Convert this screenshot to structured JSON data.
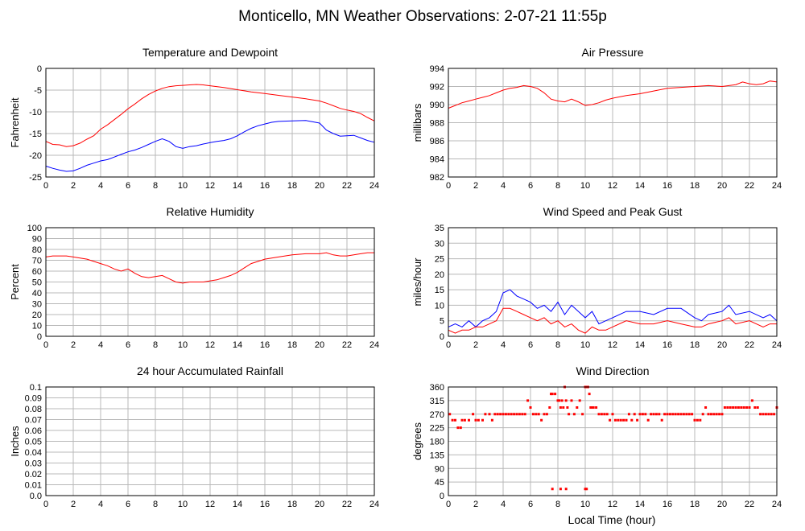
{
  "page_title": "Monticello, MN Weather Observations: 2-07-21 11:55p",
  "x_axis_label": "Local Time (hour)",
  "colors": {
    "red": "#ff0000",
    "blue": "#0000ff",
    "grid": "#b8b8b8"
  },
  "chart_data": [
    {
      "id": "temp",
      "type": "line",
      "title": "Temperature and Dewpoint",
      "xlabel": "",
      "ylabel": "Fahrenheit",
      "xlim": [
        0,
        24
      ],
      "ylim": [
        -25,
        0
      ],
      "xticks": [
        0,
        2,
        4,
        6,
        8,
        10,
        12,
        14,
        16,
        18,
        20,
        22,
        24
      ],
      "yticks": [
        -25,
        -20,
        -15,
        -10,
        -5,
        0
      ],
      "grid": true,
      "series": [
        {
          "color": "#ff0000",
          "x": [
            0,
            0.5,
            1,
            1.5,
            2,
            2.5,
            3,
            3.5,
            4,
            4.5,
            5,
            5.5,
            6,
            6.5,
            7,
            7.5,
            8,
            8.5,
            9,
            9.5,
            10,
            10.5,
            11,
            11.5,
            12,
            13,
            14,
            15,
            16,
            17,
            18,
            19,
            20,
            20.5,
            21,
            21.5,
            22,
            22.5,
            23,
            23.5,
            24
          ],
          "y": [
            -16.8,
            -17.5,
            -17.6,
            -18.0,
            -17.8,
            -17.2,
            -16.3,
            -15.5,
            -14.0,
            -13.0,
            -11.8,
            -10.6,
            -9.3,
            -8.2,
            -7.0,
            -6.0,
            -5.2,
            -4.6,
            -4.2,
            -4.0,
            -3.9,
            -3.8,
            -3.7,
            -3.8,
            -4.0,
            -4.4,
            -4.9,
            -5.4,
            -5.8,
            -6.2,
            -6.6,
            -7.0,
            -7.5,
            -8.0,
            -8.6,
            -9.2,
            -9.6,
            -9.9,
            -10.4,
            -11.3,
            -12.1
          ]
        },
        {
          "color": "#0000ff",
          "x": [
            0,
            0.5,
            1,
            1.5,
            2,
            2.5,
            3,
            3.5,
            4,
            4.5,
            5,
            5.5,
            6,
            6.5,
            7,
            7.5,
            8,
            8.5,
            9,
            9.5,
            10,
            10.5,
            11,
            11.5,
            12,
            12.5,
            13,
            13.5,
            14,
            14.5,
            15,
            15.5,
            16,
            16.5,
            17,
            18,
            19,
            19.5,
            20,
            20.5,
            21,
            21.5,
            22,
            22.5,
            23,
            23.5,
            24
          ],
          "y": [
            -22.5,
            -23.0,
            -23.4,
            -23.7,
            -23.6,
            -23.0,
            -22.3,
            -21.8,
            -21.3,
            -21.0,
            -20.4,
            -19.8,
            -19.2,
            -18.8,
            -18.2,
            -17.5,
            -16.8,
            -16.2,
            -16.8,
            -18.0,
            -18.4,
            -18.0,
            -17.8,
            -17.4,
            -17.1,
            -16.8,
            -16.6,
            -16.2,
            -15.5,
            -14.6,
            -13.8,
            -13.2,
            -12.8,
            -12.4,
            -12.2,
            -12.1,
            -12.0,
            -12.3,
            -12.6,
            -14.2,
            -15.0,
            -15.6,
            -15.5,
            -15.4,
            -16.0,
            -16.6,
            -17.0
          ]
        }
      ]
    },
    {
      "id": "pressure",
      "type": "line",
      "title": "Air Pressure",
      "xlabel": "",
      "ylabel": "millibars",
      "xlim": [
        0,
        24
      ],
      "ylim": [
        982,
        994
      ],
      "xticks": [
        0,
        2,
        4,
        6,
        8,
        10,
        12,
        14,
        16,
        18,
        20,
        22,
        24
      ],
      "yticks": [
        982,
        984,
        986,
        988,
        990,
        992,
        994
      ],
      "grid": true,
      "series": [
        {
          "color": "#ff0000",
          "x": [
            0,
            0.5,
            1,
            1.5,
            2,
            2.5,
            3,
            3.5,
            4,
            4.5,
            5,
            5.5,
            6,
            6.5,
            7,
            7.5,
            8,
            8.5,
            9,
            9.5,
            10,
            10.5,
            11,
            11.5,
            12,
            13,
            14,
            15,
            16,
            17,
            18,
            19,
            20,
            21,
            21.5,
            22,
            22.5,
            23,
            23.5,
            24
          ],
          "y": [
            989.6,
            989.9,
            990.2,
            990.4,
            990.6,
            990.8,
            991.0,
            991.3,
            991.6,
            991.8,
            991.9,
            992.1,
            992.0,
            991.8,
            991.3,
            990.6,
            990.4,
            990.3,
            990.6,
            990.3,
            989.9,
            990.0,
            990.2,
            990.5,
            990.7,
            991.0,
            991.2,
            991.5,
            991.8,
            991.9,
            992.0,
            992.1,
            992.0,
            992.2,
            992.5,
            992.3,
            992.2,
            992.3,
            992.6,
            992.5
          ]
        }
      ]
    },
    {
      "id": "humidity",
      "type": "line",
      "title": "Relative Humidity",
      "xlabel": "",
      "ylabel": "Percent",
      "xlim": [
        0,
        24
      ],
      "ylim": [
        0,
        100
      ],
      "xticks": [
        0,
        2,
        4,
        6,
        8,
        10,
        12,
        14,
        16,
        18,
        20,
        22,
        24
      ],
      "yticks": [
        0,
        10,
        20,
        30,
        40,
        50,
        60,
        70,
        80,
        90,
        100
      ],
      "grid": true,
      "series": [
        {
          "color": "#ff0000",
          "x": [
            0,
            0.5,
            1,
            1.5,
            2,
            2.5,
            3,
            3.5,
            4,
            4.5,
            5,
            5.5,
            6,
            6.5,
            7,
            7.5,
            8,
            8.5,
            9,
            9.5,
            10,
            10.5,
            11,
            11.5,
            12,
            12.5,
            13,
            13.5,
            14,
            14.5,
            15,
            16,
            17,
            18,
            19,
            20,
            20.5,
            21,
            21.5,
            22,
            22.5,
            23,
            23.5,
            24
          ],
          "y": [
            73,
            74,
            74,
            74,
            73,
            72,
            71,
            69,
            67,
            65,
            62,
            60,
            62,
            58,
            55,
            54,
            55,
            56,
            53,
            50,
            49,
            50,
            50,
            50,
            51,
            52,
            54,
            56,
            59,
            63,
            67,
            71,
            73,
            75,
            76,
            76,
            77,
            75,
            74,
            74,
            75,
            76,
            77,
            77
          ]
        }
      ]
    },
    {
      "id": "wind",
      "type": "line",
      "title": "Wind Speed and Peak Gust",
      "xlabel": "",
      "ylabel": "miles/hour",
      "xlim": [
        0,
        24
      ],
      "ylim": [
        0,
        35
      ],
      "xticks": [
        0,
        2,
        4,
        6,
        8,
        10,
        12,
        14,
        16,
        18,
        20,
        22,
        24
      ],
      "yticks": [
        0,
        5,
        10,
        15,
        20,
        25,
        30,
        35
      ],
      "grid": true,
      "series": [
        {
          "color": "#0000ff",
          "x": [
            0,
            0.5,
            1,
            1.5,
            2,
            2.5,
            3,
            3.5,
            4,
            4.5,
            5,
            5.5,
            6,
            6.5,
            7,
            7.5,
            8,
            8.5,
            9,
            9.5,
            10,
            10.5,
            11,
            11.5,
            12,
            13,
            14,
            15,
            16,
            17,
            18,
            18.5,
            19,
            20,
            20.5,
            21,
            22,
            23,
            23.5,
            24
          ],
          "y": [
            3,
            4,
            3,
            5,
            3,
            5,
            6,
            8,
            14,
            15,
            13,
            12,
            11,
            9,
            10,
            8,
            11,
            7,
            10,
            8,
            6,
            8,
            4,
            5,
            6,
            8,
            8,
            7,
            9,
            9,
            6,
            5,
            7,
            8,
            10,
            7,
            8,
            6,
            7,
            5
          ]
        },
        {
          "color": "#ff0000",
          "x": [
            0,
            0.5,
            1,
            1.5,
            2,
            2.5,
            3,
            3.5,
            4,
            4.5,
            5,
            5.5,
            6,
            6.5,
            7,
            7.5,
            8,
            8.5,
            9,
            9.5,
            10,
            10.5,
            11,
            11.5,
            12,
            13,
            14,
            15,
            16,
            17,
            18,
            18.5,
            19,
            20,
            20.5,
            21,
            22,
            23,
            23.5,
            24
          ],
          "y": [
            2,
            1,
            2,
            2,
            3,
            3,
            4,
            5,
            9,
            9,
            8,
            7,
            6,
            5,
            6,
            4,
            5,
            3,
            4,
            2,
            1,
            3,
            2,
            2,
            3,
            5,
            4,
            4,
            5,
            4,
            3,
            3,
            4,
            5,
            6,
            4,
            5,
            3,
            4,
            4
          ]
        }
      ]
    },
    {
      "id": "rain",
      "type": "line",
      "title": "24 hour Accumulated Rainfall",
      "xlabel": "",
      "ylabel": "Inches",
      "xlim": [
        0,
        24
      ],
      "ylim": [
        0,
        0.1
      ],
      "xticks": [
        0,
        2,
        4,
        6,
        8,
        10,
        12,
        14,
        16,
        18,
        20,
        22,
        24
      ],
      "yticks": [
        0.0,
        0.01,
        0.02,
        0.03,
        0.04,
        0.05,
        0.06,
        0.07,
        0.08,
        0.09,
        0.1
      ],
      "ytick_labels": [
        "0.0",
        "0.01",
        "0.02",
        "0.03",
        "0.04",
        "0.05",
        "0.06",
        "0.07",
        "0.08",
        "0.09",
        "0.1"
      ],
      "grid": true,
      "series": [
        {
          "color": "#ff0000",
          "x": [
            0,
            24
          ],
          "y": [
            0,
            0
          ]
        }
      ]
    },
    {
      "id": "direction",
      "type": "scatter",
      "title": "Wind Direction",
      "xlabel": "Local Time (hour)",
      "ylabel": "degrees",
      "xlim": [
        0,
        24
      ],
      "ylim": [
        0,
        360
      ],
      "xticks": [
        0,
        2,
        4,
        6,
        8,
        10,
        12,
        14,
        16,
        18,
        20,
        22,
        24
      ],
      "yticks": [
        0,
        45,
        90,
        135,
        180,
        225,
        270,
        315,
        360
      ],
      "grid": true,
      "series": [
        {
          "color": "#ff0000",
          "x": [
            0.1,
            0.3,
            0.5,
            0.7,
            0.9,
            1.0,
            1.2,
            1.5,
            1.8,
            2.0,
            2.2,
            2.5,
            2.7,
            3.0,
            3.2,
            3.4,
            3.6,
            3.8,
            4.0,
            4.2,
            4.4,
            4.6,
            4.8,
            5.0,
            5.2,
            5.4,
            5.6,
            5.8,
            6.0,
            6.2,
            6.4,
            6.6,
            6.8,
            7.0,
            7.2,
            7.4,
            7.5,
            7.6,
            7.8,
            8.0,
            8.1,
            8.2,
            8.3,
            8.4,
            8.5,
            8.6,
            8.7,
            8.8,
            9.0,
            9.2,
            9.4,
            9.6,
            9.8,
            10.0,
            10.1,
            10.2,
            10.3,
            10.4,
            10.5,
            10.6,
            10.8,
            11.0,
            11.2,
            11.4,
            11.6,
            11.8,
            12.0,
            12.2,
            12.4,
            12.6,
            12.8,
            13.0,
            13.2,
            13.4,
            13.6,
            13.8,
            14.0,
            14.2,
            14.4,
            14.6,
            14.8,
            15.0,
            15.2,
            15.4,
            15.6,
            15.8,
            16.0,
            16.2,
            16.4,
            16.6,
            16.8,
            17.0,
            17.2,
            17.4,
            17.6,
            17.8,
            18.0,
            18.2,
            18.4,
            18.6,
            18.8,
            19.0,
            19.2,
            19.4,
            19.6,
            19.8,
            20.0,
            20.2,
            20.4,
            20.6,
            20.8,
            21.0,
            21.2,
            21.4,
            21.6,
            21.8,
            22.0,
            22.2,
            22.4,
            22.6,
            22.8,
            23.0,
            23.2,
            23.4,
            23.6,
            23.8,
            24.0,
            7.6,
            8.2,
            8.6,
            10.0,
            10.1
          ],
          "y": [
            270,
            250,
            250,
            225,
            225,
            250,
            250,
            250,
            270,
            250,
            250,
            250,
            270,
            270,
            250,
            270,
            270,
            270,
            270,
            270,
            270,
            270,
            270,
            270,
            270,
            270,
            270,
            315,
            292,
            270,
            270,
            270,
            250,
            270,
            270,
            292,
            337,
            337,
            337,
            315,
            315,
            292,
            315,
            292,
            360,
            315,
            292,
            270,
            315,
            270,
            292,
            315,
            270,
            360,
            360,
            360,
            337,
            292,
            292,
            292,
            292,
            270,
            270,
            270,
            270,
            250,
            270,
            250,
            250,
            250,
            250,
            250,
            270,
            250,
            270,
            250,
            270,
            270,
            270,
            250,
            270,
            270,
            270,
            270,
            250,
            270,
            270,
            270,
            270,
            270,
            270,
            270,
            270,
            270,
            270,
            270,
            250,
            250,
            250,
            270,
            292,
            270,
            270,
            270,
            270,
            270,
            270,
            292,
            292,
            292,
            292,
            292,
            292,
            292,
            292,
            292,
            292,
            315,
            292,
            292,
            270,
            270,
            270,
            270,
            270,
            270,
            292,
            22,
            22,
            22,
            22,
            22
          ]
        }
      ]
    }
  ]
}
